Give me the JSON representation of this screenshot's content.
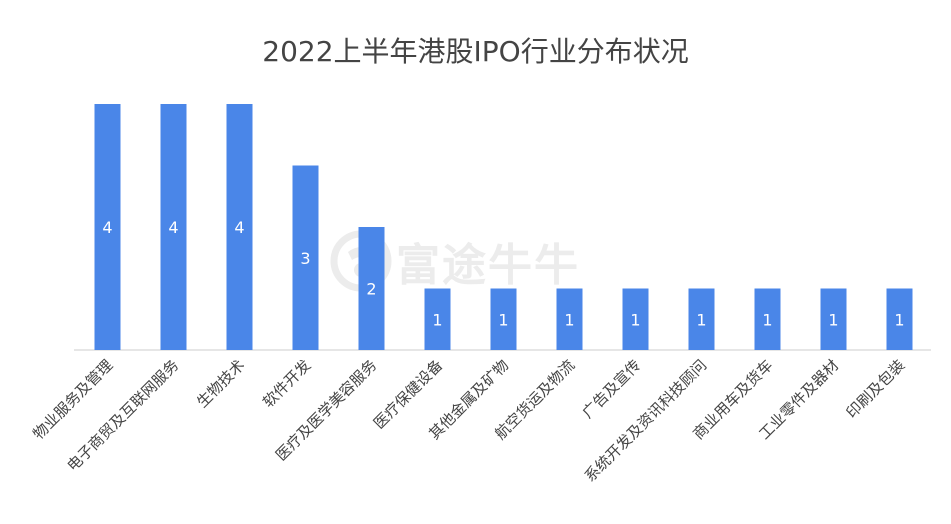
{
  "watermark": {
    "text": "富途牛牛"
  },
  "colors": {
    "bar": "#4a86e8",
    "value_label": "#ffffff",
    "axis": "#cccccc",
    "tick_label": "#444444",
    "title": "#444444"
  },
  "chart_data": {
    "type": "bar",
    "title": "2022上半年港股IPO行业分布状况",
    "categories": [
      "物业服务及管理",
      "电子商贸及互联网服务",
      "生物技术",
      "软件开发",
      "医疗及医学美容服务",
      "医疗保健设备",
      "其他金属及矿物",
      "航空货运及物流",
      "广告及宣传",
      "系统开发及资讯科技顾问",
      "商业用车及货车",
      "工业零件及器材",
      "印刷及包装"
    ],
    "values": [
      4,
      4,
      4,
      3,
      2,
      1,
      1,
      1,
      1,
      1,
      1,
      1,
      1
    ],
    "ylim": [
      0,
      4
    ],
    "xlabel": "",
    "ylabel": "",
    "data_labels": true,
    "grid": false,
    "legend": "none"
  }
}
